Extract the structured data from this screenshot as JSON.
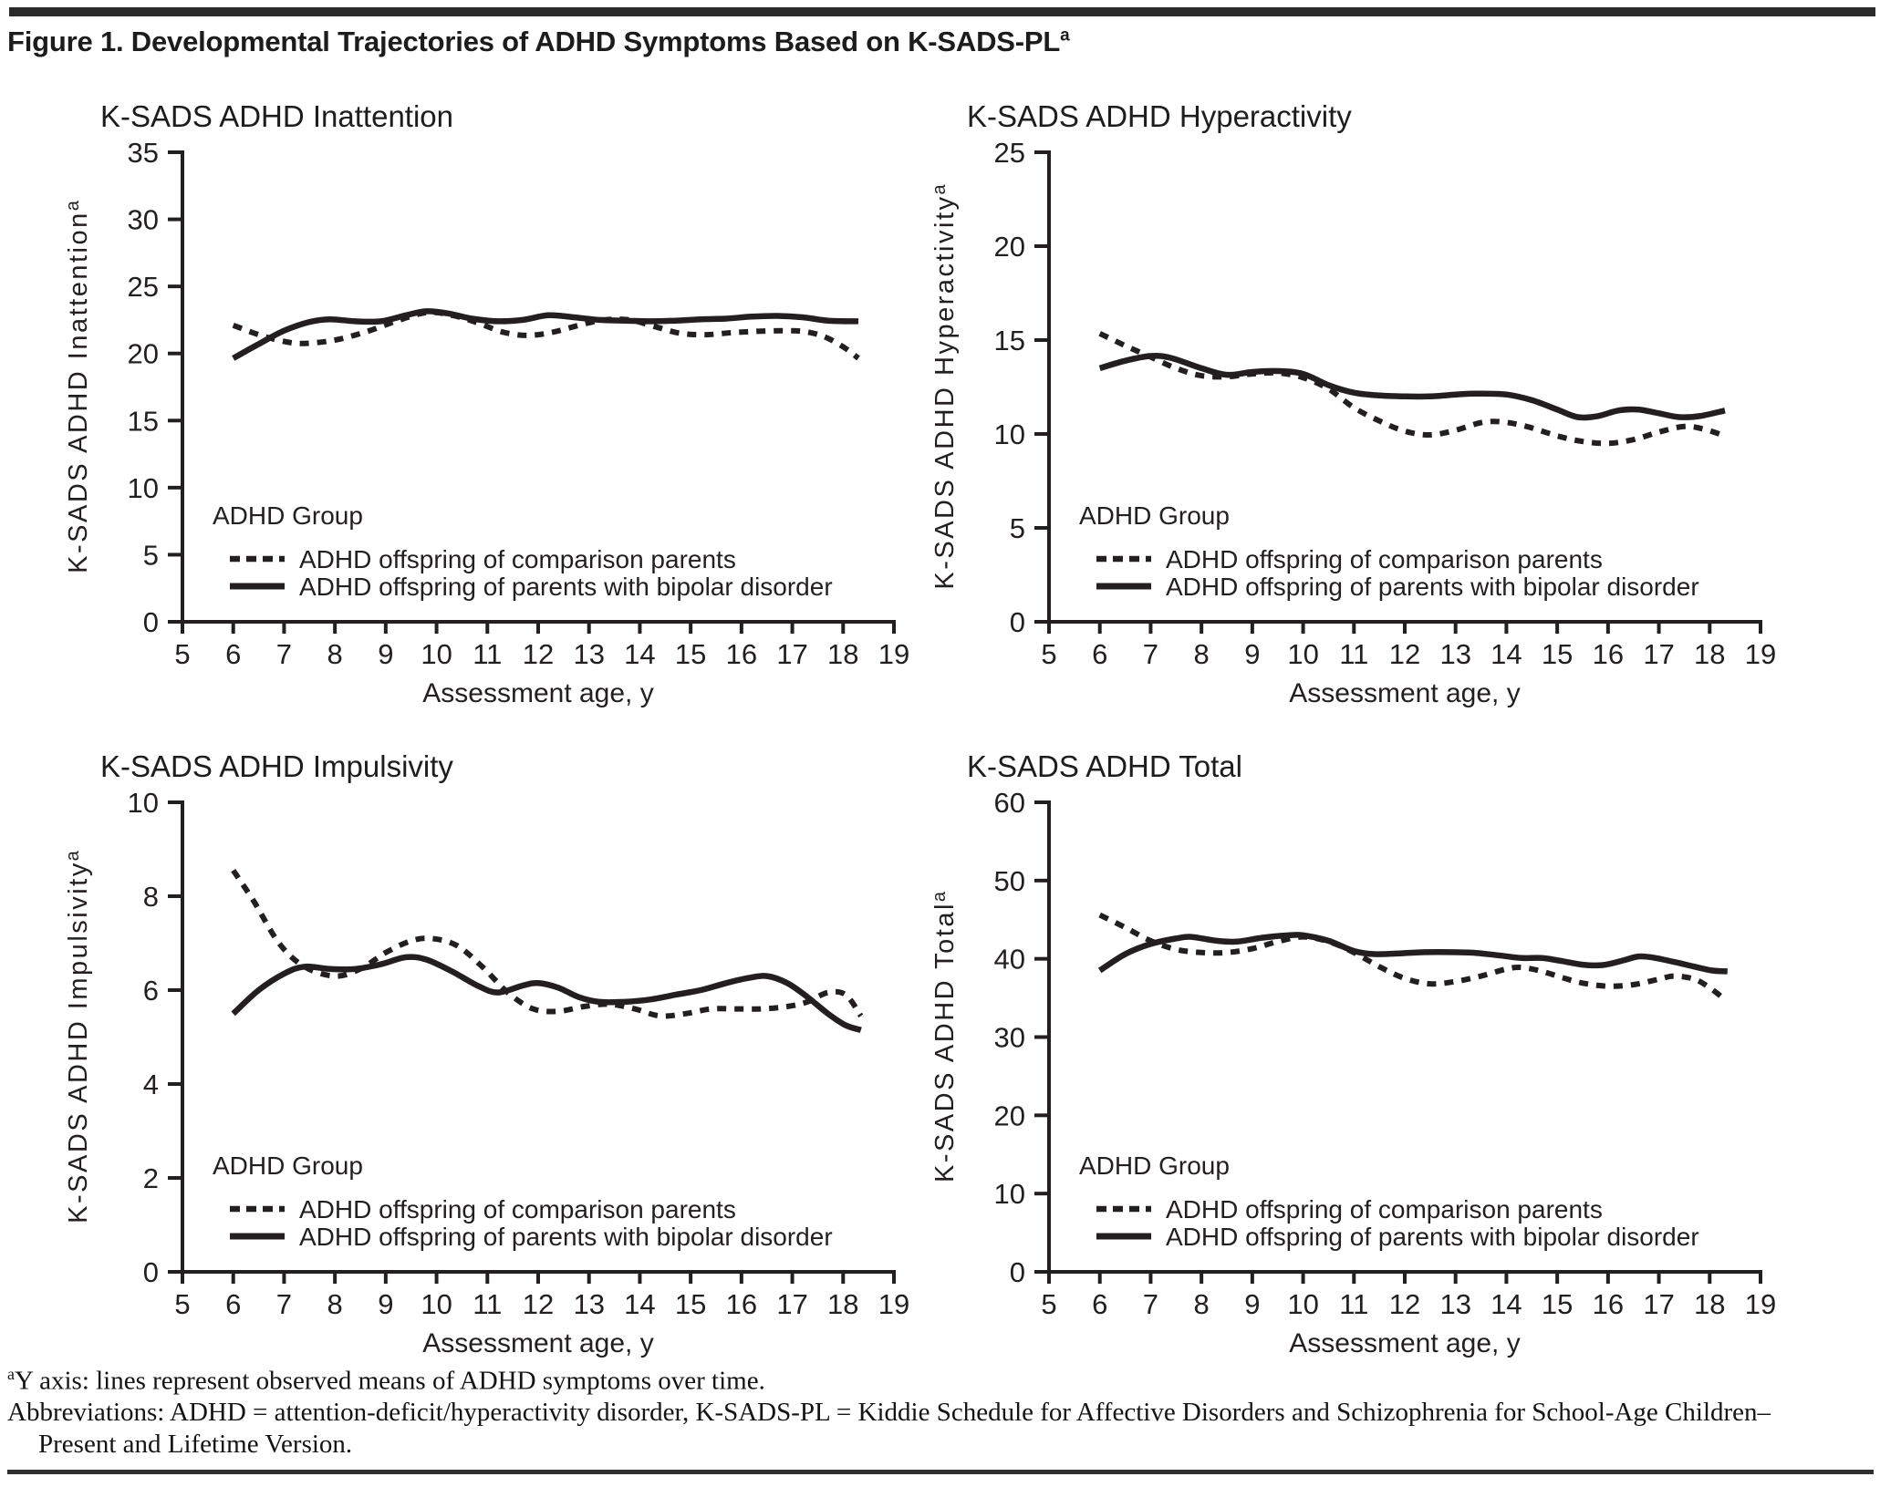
{
  "figure": {
    "title": "Figure 1. Developmental Trajectories of ADHD Symptoms Based on K-SADS-PL",
    "title_superscript": "a"
  },
  "legend": {
    "heading": "ADHD Group",
    "entries": [
      {
        "label": "ADHD offspring of comparison parents",
        "line_style": "dashed"
      },
      {
        "label": "ADHD offspring of parents with bipolar disorder",
        "line_style": "solid"
      }
    ]
  },
  "footnotes": {
    "note1_superscript": "a",
    "note1": "Y axis: lines represent observed means of ADHD symptoms over time.",
    "note2": "Abbreviations: ADHD = attention-deficit/hyperactivity disorder, K-SADS-PL = Kiddie Schedule for Affective Disorders and Schizophrenia for School-Age Children–Present and Lifetime Version."
  },
  "colors": {
    "ink": "#231f20",
    "bar": "#2b2b2b"
  },
  "chart_data": [
    {
      "type": "line",
      "title": "K-SADS ADHD Inattention",
      "xlabel": "Assessment age, y",
      "ylabel": "K-SADS ADHD Inattention",
      "ylabel_superscript": "a",
      "xlim": [
        5,
        19
      ],
      "ylim": [
        0,
        35
      ],
      "xticks": [
        5,
        6,
        7,
        8,
        9,
        10,
        11,
        12,
        13,
        14,
        15,
        16,
        17,
        18,
        19
      ],
      "yticks": [
        0,
        5,
        10,
        15,
        20,
        25,
        30,
        35
      ],
      "grid": false,
      "legend_position": "bottom-left",
      "series": [
        {
          "name": "ADHD offspring of comparison parents",
          "style": "dashed",
          "points": [
            [
              6,
              22.1
            ],
            [
              6.5,
              21.4
            ],
            [
              7,
              20.9
            ],
            [
              7.4,
              20.75
            ],
            [
              8,
              21.0
            ],
            [
              8.6,
              21.6
            ],
            [
              9.2,
              22.4
            ],
            [
              9.8,
              23.05
            ],
            [
              10.3,
              22.85
            ],
            [
              10.8,
              22.3
            ],
            [
              11.3,
              21.6
            ],
            [
              11.8,
              21.35
            ],
            [
              12.3,
              21.6
            ],
            [
              12.8,
              22.1
            ],
            [
              13.3,
              22.5
            ],
            [
              13.8,
              22.5
            ],
            [
              14.3,
              22.0
            ],
            [
              14.8,
              21.5
            ],
            [
              15.3,
              21.4
            ],
            [
              15.8,
              21.55
            ],
            [
              16.3,
              21.65
            ],
            [
              16.8,
              21.7
            ],
            [
              17.2,
              21.65
            ],
            [
              17.6,
              21.3
            ],
            [
              18,
              20.5
            ],
            [
              18.3,
              19.65
            ]
          ]
        },
        {
          "name": "ADHD offspring of parents with bipolar disorder",
          "style": "solid",
          "points": [
            [
              6,
              19.65
            ],
            [
              6.5,
              20.7
            ],
            [
              7,
              21.7
            ],
            [
              7.5,
              22.35
            ],
            [
              7.9,
              22.55
            ],
            [
              8.4,
              22.4
            ],
            [
              8.9,
              22.4
            ],
            [
              9.4,
              22.85
            ],
            [
              9.8,
              23.15
            ],
            [
              10.2,
              23.0
            ],
            [
              10.7,
              22.6
            ],
            [
              11.2,
              22.4
            ],
            [
              11.7,
              22.5
            ],
            [
              12.2,
              22.85
            ],
            [
              12.7,
              22.7
            ],
            [
              13.2,
              22.5
            ],
            [
              13.7,
              22.45
            ],
            [
              14.2,
              22.4
            ],
            [
              14.7,
              22.45
            ],
            [
              15.2,
              22.55
            ],
            [
              15.7,
              22.6
            ],
            [
              16.2,
              22.75
            ],
            [
              16.7,
              22.8
            ],
            [
              17.2,
              22.7
            ],
            [
              17.7,
              22.45
            ],
            [
              18.3,
              22.4
            ]
          ]
        }
      ]
    },
    {
      "type": "line",
      "title": "K-SADS ADHD Hyperactivity",
      "xlabel": "Assessment age, y",
      "ylabel": "K-SADS ADHD Hyperactivity",
      "ylabel_superscript": "a",
      "xlim": [
        5,
        19
      ],
      "ylim": [
        0,
        25
      ],
      "xticks": [
        5,
        6,
        7,
        8,
        9,
        10,
        11,
        12,
        13,
        14,
        15,
        16,
        17,
        18,
        19
      ],
      "yticks": [
        0,
        5,
        10,
        15,
        20,
        25
      ],
      "grid": false,
      "legend_position": "bottom-left",
      "series": [
        {
          "name": "ADHD offspring of comparison parents",
          "style": "dashed",
          "points": [
            [
              6,
              15.35
            ],
            [
              6.5,
              14.7
            ],
            [
              7,
              14.1
            ],
            [
              7.5,
              13.5
            ],
            [
              8,
              13.1
            ],
            [
              8.5,
              13.05
            ],
            [
              9,
              13.2
            ],
            [
              9.5,
              13.25
            ],
            [
              10,
              13.0
            ],
            [
              10.5,
              12.4
            ],
            [
              11,
              11.4
            ],
            [
              11.5,
              10.7
            ],
            [
              12,
              10.15
            ],
            [
              12.5,
              9.95
            ],
            [
              13,
              10.2
            ],
            [
              13.5,
              10.6
            ],
            [
              13.9,
              10.65
            ],
            [
              14.4,
              10.4
            ],
            [
              15,
              9.9
            ],
            [
              15.5,
              9.6
            ],
            [
              16,
              9.5
            ],
            [
              16.5,
              9.7
            ],
            [
              17,
              10.1
            ],
            [
              17.5,
              10.4
            ],
            [
              17.9,
              10.25
            ],
            [
              18.3,
              9.9
            ]
          ]
        },
        {
          "name": "ADHD offspring of parents with bipolar disorder",
          "style": "solid",
          "points": [
            [
              6,
              13.5
            ],
            [
              6.5,
              13.9
            ],
            [
              7,
              14.15
            ],
            [
              7.4,
              14.05
            ],
            [
              8,
              13.5
            ],
            [
              8.5,
              13.15
            ],
            [
              9,
              13.3
            ],
            [
              9.5,
              13.35
            ],
            [
              10,
              13.2
            ],
            [
              10.5,
              12.6
            ],
            [
              11,
              12.2
            ],
            [
              11.5,
              12.05
            ],
            [
              12,
              12.0
            ],
            [
              12.5,
              12.0
            ],
            [
              13,
              12.1
            ],
            [
              13.4,
              12.15
            ],
            [
              14,
              12.1
            ],
            [
              14.5,
              11.8
            ],
            [
              15,
              11.3
            ],
            [
              15.4,
              10.9
            ],
            [
              15.8,
              10.95
            ],
            [
              16.2,
              11.25
            ],
            [
              16.6,
              11.3
            ],
            [
              17,
              11.1
            ],
            [
              17.4,
              10.9
            ],
            [
              17.8,
              10.95
            ],
            [
              18.3,
              11.25
            ]
          ]
        }
      ]
    },
    {
      "type": "line",
      "title": "K-SADS ADHD Impulsivity",
      "xlabel": "Assessment age, y",
      "ylabel": "K-SADS ADHD Impulsivity",
      "ylabel_superscript": "a",
      "xlim": [
        5,
        19
      ],
      "ylim": [
        0,
        10
      ],
      "xticks": [
        5,
        6,
        7,
        8,
        9,
        10,
        11,
        12,
        13,
        14,
        15,
        16,
        17,
        18,
        19
      ],
      "yticks": [
        0,
        2,
        4,
        6,
        8,
        10
      ],
      "grid": false,
      "legend_position": "bottom-left",
      "series": [
        {
          "name": "ADHD offspring of comparison parents",
          "style": "dashed",
          "points": [
            [
              6,
              8.55
            ],
            [
              6.4,
              7.9
            ],
            [
              6.9,
              7.0
            ],
            [
              7.4,
              6.5
            ],
            [
              8,
              6.3
            ],
            [
              8.5,
              6.45
            ],
            [
              9,
              6.8
            ],
            [
              9.5,
              7.05
            ],
            [
              9.9,
              7.1
            ],
            [
              10.4,
              6.95
            ],
            [
              10.9,
              6.5
            ],
            [
              11.4,
              5.95
            ],
            [
              11.9,
              5.6
            ],
            [
              12.4,
              5.55
            ],
            [
              12.9,
              5.65
            ],
            [
              13.4,
              5.7
            ],
            [
              13.9,
              5.6
            ],
            [
              14.4,
              5.45
            ],
            [
              14.9,
              5.5
            ],
            [
              15.4,
              5.6
            ],
            [
              15.9,
              5.6
            ],
            [
              16.4,
              5.6
            ],
            [
              16.9,
              5.65
            ],
            [
              17.3,
              5.75
            ],
            [
              17.7,
              5.95
            ],
            [
              18.05,
              5.9
            ],
            [
              18.35,
              5.45
            ]
          ]
        },
        {
          "name": "ADHD offspring of parents with bipolar disorder",
          "style": "solid",
          "points": [
            [
              6,
              5.5
            ],
            [
              6.5,
              6.0
            ],
            [
              7,
              6.35
            ],
            [
              7.4,
              6.5
            ],
            [
              7.9,
              6.45
            ],
            [
              8.4,
              6.45
            ],
            [
              8.9,
              6.55
            ],
            [
              9.4,
              6.7
            ],
            [
              9.8,
              6.65
            ],
            [
              10.3,
              6.4
            ],
            [
              10.8,
              6.1
            ],
            [
              11.2,
              5.95
            ],
            [
              11.7,
              6.1
            ],
            [
              12,
              6.15
            ],
            [
              12.4,
              6.05
            ],
            [
              12.8,
              5.85
            ],
            [
              13.2,
              5.75
            ],
            [
              13.7,
              5.75
            ],
            [
              14.2,
              5.8
            ],
            [
              14.7,
              5.9
            ],
            [
              15.2,
              6.0
            ],
            [
              15.7,
              6.15
            ],
            [
              16.1,
              6.25
            ],
            [
              16.5,
              6.3
            ],
            [
              16.9,
              6.15
            ],
            [
              17.3,
              5.85
            ],
            [
              17.7,
              5.5
            ],
            [
              18.05,
              5.25
            ],
            [
              18.35,
              5.15
            ]
          ]
        }
      ]
    },
    {
      "type": "line",
      "title": "K-SADS ADHD Total",
      "xlabel": "Assessment age, y",
      "ylabel": "K-SADS ADHD Total",
      "ylabel_superscript": "a",
      "xlim": [
        5,
        19
      ],
      "ylim": [
        0,
        60
      ],
      "xticks": [
        5,
        6,
        7,
        8,
        9,
        10,
        11,
        12,
        13,
        14,
        15,
        16,
        17,
        18,
        19
      ],
      "yticks": [
        0,
        10,
        20,
        30,
        40,
        50,
        60
      ],
      "grid": false,
      "legend_position": "bottom-left",
      "series": [
        {
          "name": "ADHD offspring of comparison parents",
          "style": "dashed",
          "points": [
            [
              6,
              45.6
            ],
            [
              6.5,
              44.0
            ],
            [
              7,
              42.3
            ],
            [
              7.5,
              41.2
            ],
            [
              8,
              40.8
            ],
            [
              8.5,
              40.8
            ],
            [
              9,
              41.3
            ],
            [
              9.5,
              42.2
            ],
            [
              10,
              42.8
            ],
            [
              10.5,
              42.2
            ],
            [
              11,
              40.8
            ],
            [
              11.5,
              39.0
            ],
            [
              12,
              37.5
            ],
            [
              12.5,
              36.8
            ],
            [
              13,
              37.1
            ],
            [
              13.5,
              37.8
            ],
            [
              14,
              38.7
            ],
            [
              14.3,
              38.9
            ],
            [
              14.7,
              38.4
            ],
            [
              15.1,
              37.6
            ],
            [
              15.5,
              36.9
            ],
            [
              16,
              36.5
            ],
            [
              16.5,
              36.7
            ],
            [
              17,
              37.4
            ],
            [
              17.3,
              37.8
            ],
            [
              17.7,
              37.4
            ],
            [
              18,
              36.3
            ],
            [
              18.3,
              34.8
            ]
          ]
        },
        {
          "name": "ADHD offspring of parents with bipolar disorder",
          "style": "solid",
          "points": [
            [
              6,
              38.5
            ],
            [
              6.5,
              40.6
            ],
            [
              7,
              41.9
            ],
            [
              7.5,
              42.6
            ],
            [
              7.8,
              42.8
            ],
            [
              8.3,
              42.3
            ],
            [
              8.7,
              42.2
            ],
            [
              9.2,
              42.7
            ],
            [
              9.7,
              43.0
            ],
            [
              10,
              43.0
            ],
            [
              10.5,
              42.3
            ],
            [
              11,
              41.0
            ],
            [
              11.4,
              40.6
            ],
            [
              11.9,
              40.7
            ],
            [
              12.4,
              40.85
            ],
            [
              12.9,
              40.85
            ],
            [
              13.4,
              40.75
            ],
            [
              13.9,
              40.4
            ],
            [
              14.3,
              40.1
            ],
            [
              14.7,
              40.1
            ],
            [
              15.1,
              39.7
            ],
            [
              15.5,
              39.25
            ],
            [
              15.9,
              39.2
            ],
            [
              16.3,
              39.8
            ],
            [
              16.6,
              40.3
            ],
            [
              16.9,
              40.15
            ],
            [
              17.3,
              39.6
            ],
            [
              17.7,
              39.0
            ],
            [
              18.05,
              38.5
            ],
            [
              18.35,
              38.4
            ]
          ]
        }
      ]
    }
  ]
}
